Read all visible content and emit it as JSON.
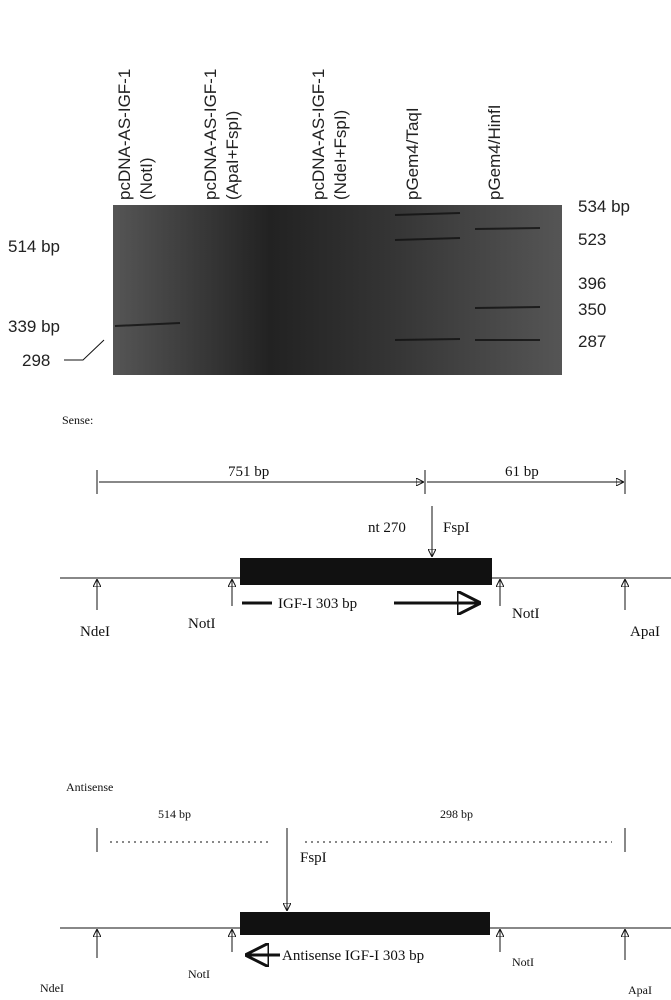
{
  "gel": {
    "lanes": [
      {
        "name": "pcDNA-AS-IGF-1",
        "digest": "(NotI)"
      },
      {
        "name": "pcDNA-AS-IGF-1",
        "digest": "(ApaI+FspI)"
      },
      {
        "name": "pcDNA-AS-IGF-1",
        "digest": "(NdeI+FspI)"
      },
      {
        "name": "pGem4/TaqI"
      },
      {
        "name": "pGem4/HinfI"
      }
    ],
    "left_markers": [
      "514 bp",
      "339 bp",
      "298"
    ],
    "right_markers": [
      "534 bp",
      "523",
      "396",
      "350",
      "287"
    ]
  },
  "sense": {
    "label": "Sense:",
    "fragments": [
      "751 bp",
      "61 bp"
    ],
    "site": "nt 270",
    "site_enzyme": "FspI",
    "insert": "IGF-I 303 bp",
    "sites": [
      "NdeI",
      "NotI",
      "NotI",
      "ApaI"
    ]
  },
  "antisense": {
    "label": "Antisense",
    "fragments": [
      "514 bp",
      "298 bp"
    ],
    "site_enzyme": "FspI",
    "insert": "Antisense IGF-I 303 bp",
    "sites": [
      "NdeI",
      "NotI",
      "NotI",
      "ApaI"
    ]
  }
}
